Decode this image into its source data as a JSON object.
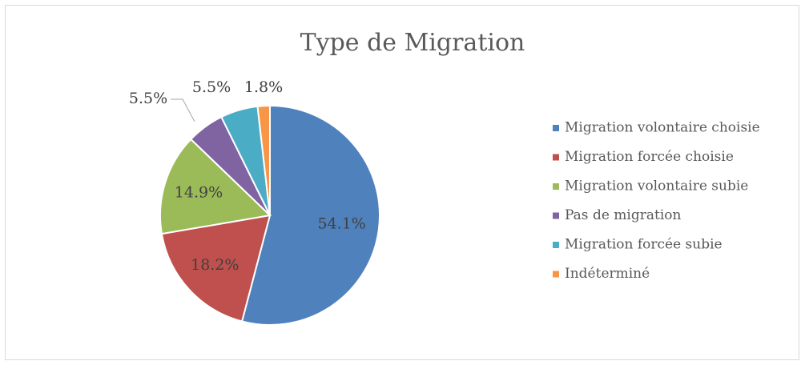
{
  "chart_data": {
    "type": "pie",
    "title": "Type de Migration",
    "categories": [
      "Migration volontaire choisie",
      "Migration forcée choisie",
      "Migration volontaire subie",
      "Pas de migration",
      "Migration forcée subie",
      "Indéterminé"
    ],
    "values": [
      54.1,
      18.2,
      14.9,
      5.5,
      5.5,
      1.8
    ],
    "value_labels": [
      "54.1%",
      "18.2%",
      "14.9%",
      "5.5%",
      "5.5%",
      "1.8%"
    ],
    "colors": [
      "#4f81bd",
      "#c0504d",
      "#9bbb59",
      "#8064a2",
      "#4bacc6",
      "#f79646"
    ],
    "legend": "right"
  }
}
